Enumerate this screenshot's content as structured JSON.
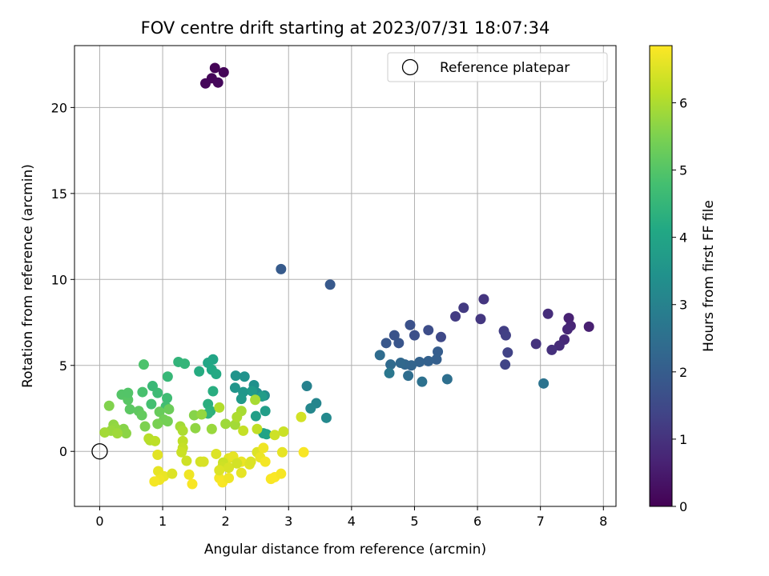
{
  "chart_data": {
    "type": "scatter",
    "title": "FOV centre drift starting at 2023/07/31 18:07:34",
    "xlabel": "Angular distance from reference (arcmin)",
    "ylabel": "Rotation from reference (arcmin)",
    "xlim": [
      -0.4,
      8.2
    ],
    "ylim": [
      -3.2,
      23.6
    ],
    "xticks": [
      0,
      1,
      2,
      3,
      4,
      5,
      6,
      7,
      8
    ],
    "yticks": [
      0,
      5,
      10,
      15,
      20
    ],
    "grid": true,
    "legend": {
      "placement": "top-right",
      "entries": [
        "Reference platepar"
      ]
    },
    "reference_point": {
      "x": 0,
      "y": 0
    },
    "colorbar": {
      "label": "Hours from first FF file",
      "range": [
        0,
        6.85
      ],
      "ticks": [
        0,
        1,
        2,
        3,
        4,
        5,
        6
      ],
      "colormap": "viridis"
    },
    "series": [
      {
        "points": [
          [
            1.83,
            22.3,
            0.05
          ],
          [
            1.97,
            22.05,
            0.08
          ],
          [
            1.78,
            21.7,
            0.1
          ],
          [
            1.68,
            21.4,
            0.12
          ],
          [
            1.88,
            21.45,
            0.14
          ],
          [
            7.77,
            7.25,
            0.6
          ],
          [
            7.45,
            7.75,
            0.65
          ],
          [
            7.48,
            7.3,
            0.7
          ],
          [
            7.43,
            7.1,
            0.75
          ],
          [
            7.38,
            6.5,
            0.8
          ],
          [
            7.3,
            6.15,
            0.85
          ],
          [
            7.12,
            8.0,
            0.9
          ],
          [
            7.18,
            5.9,
            0.95
          ],
          [
            6.93,
            6.25,
            1.0
          ],
          [
            6.1,
            8.85,
            1.05
          ],
          [
            6.05,
            7.7,
            1.1
          ],
          [
            5.78,
            8.35,
            1.15
          ],
          [
            5.65,
            7.85,
            1.2
          ],
          [
            6.42,
            7.0,
            1.25
          ],
          [
            6.45,
            6.75,
            1.3
          ],
          [
            6.48,
            5.75,
            1.35
          ],
          [
            6.44,
            5.05,
            1.4
          ],
          [
            5.42,
            6.65,
            1.5
          ],
          [
            5.22,
            7.05,
            1.6
          ],
          [
            5.0,
            6.75,
            1.65
          ],
          [
            4.93,
            7.35,
            1.7
          ],
          [
            4.68,
            6.75,
            1.75
          ],
          [
            4.75,
            6.3,
            1.8
          ],
          [
            4.55,
            6.3,
            1.85
          ],
          [
            3.66,
            9.7,
            1.9
          ],
          [
            2.88,
            10.6,
            1.95
          ],
          [
            5.37,
            5.8,
            2.0
          ],
          [
            5.35,
            5.35,
            2.05
          ],
          [
            5.22,
            5.25,
            2.1
          ],
          [
            5.08,
            5.2,
            2.15
          ],
          [
            4.95,
            5.0,
            2.2
          ],
          [
            4.85,
            5.05,
            2.25
          ],
          [
            4.78,
            5.15,
            2.3
          ],
          [
            4.62,
            5.05,
            2.35
          ],
          [
            4.45,
            5.6,
            2.4
          ],
          [
            4.9,
            4.4,
            2.45
          ],
          [
            5.52,
            4.2,
            2.5
          ],
          [
            5.12,
            4.05,
            2.55
          ],
          [
            7.05,
            3.95,
            2.6
          ],
          [
            4.6,
            4.55,
            2.7
          ],
          [
            3.29,
            3.8,
            3.0
          ],
          [
            3.44,
            2.8,
            3.1
          ],
          [
            3.35,
            2.5,
            3.15
          ],
          [
            3.6,
            1.95,
            3.2
          ],
          [
            2.62,
            3.25,
            3.3
          ],
          [
            2.5,
            3.4,
            3.35
          ],
          [
            2.45,
            3.85,
            3.4
          ],
          [
            2.3,
            4.35,
            3.45
          ],
          [
            2.16,
            4.4,
            3.5
          ],
          [
            2.15,
            3.7,
            3.55
          ],
          [
            2.28,
            3.45,
            3.6
          ],
          [
            2.25,
            3.05,
            3.65
          ],
          [
            2.42,
            3.5,
            3.7
          ],
          [
            2.58,
            3.2,
            3.75
          ],
          [
            2.63,
            2.35,
            3.8
          ],
          [
            2.48,
            2.05,
            3.85
          ],
          [
            2.6,
            1.05,
            3.9
          ],
          [
            2.65,
            1.0,
            3.95
          ],
          [
            1.8,
            5.35,
            4.0
          ],
          [
            1.72,
            5.15,
            4.05
          ],
          [
            1.78,
            4.75,
            4.1
          ],
          [
            1.85,
            4.5,
            4.15
          ],
          [
            1.58,
            4.65,
            4.2
          ],
          [
            1.8,
            3.5,
            4.25
          ],
          [
            1.72,
            2.75,
            4.3
          ],
          [
            1.76,
            2.35,
            4.35
          ],
          [
            1.72,
            2.2,
            4.4
          ],
          [
            1.25,
            5.2,
            4.45
          ],
          [
            1.35,
            5.1,
            4.5
          ],
          [
            1.08,
            4.35,
            4.55
          ],
          [
            0.84,
            3.8,
            4.6
          ],
          [
            0.92,
            3.4,
            4.65
          ],
          [
            1.07,
            3.1,
            4.7
          ],
          [
            1.05,
            2.6,
            4.75
          ],
          [
            0.82,
            2.75,
            4.8
          ],
          [
            0.68,
            3.45,
            4.85
          ],
          [
            0.7,
            5.05,
            4.9
          ],
          [
            0.44,
            3.35,
            4.95
          ],
          [
            0.35,
            3.3,
            5.0
          ],
          [
            0.45,
            3.0,
            5.05
          ],
          [
            0.48,
            2.45,
            5.1
          ],
          [
            0.62,
            2.35,
            5.15
          ],
          [
            0.67,
            2.1,
            5.2
          ],
          [
            0.95,
            2.3,
            5.25
          ],
          [
            1.1,
            2.45,
            5.3
          ],
          [
            1.02,
            1.85,
            5.35
          ],
          [
            1.08,
            1.75,
            5.4
          ],
          [
            0.92,
            1.6,
            5.45
          ],
          [
            0.72,
            1.45,
            5.5
          ],
          [
            0.15,
            2.65,
            5.55
          ],
          [
            0.38,
            1.3,
            5.6
          ],
          [
            0.42,
            1.05,
            5.65
          ],
          [
            0.22,
            1.55,
            5.7
          ],
          [
            0.25,
            1.35,
            5.75
          ],
          [
            0.18,
            1.2,
            5.8
          ],
          [
            0.28,
            1.05,
            5.85
          ],
          [
            0.08,
            1.1,
            5.9
          ],
          [
            0.45,
            3.4,
            4.98
          ],
          [
            2.47,
            3.0,
            5.95
          ],
          [
            1.5,
            2.1,
            5.6
          ],
          [
            1.52,
            1.35,
            5.7
          ],
          [
            1.62,
            2.15,
            5.75
          ],
          [
            1.78,
            1.3,
            5.8
          ],
          [
            2.0,
            1.6,
            5.85
          ],
          [
            2.15,
            1.55,
            5.9
          ],
          [
            2.25,
            2.35,
            5.95
          ],
          [
            2.18,
            2.0,
            6.0
          ],
          [
            1.9,
            2.55,
            6.05
          ],
          [
            1.28,
            1.45,
            5.9
          ],
          [
            1.32,
            1.2,
            6.0
          ],
          [
            0.8,
            0.65,
            6.05
          ],
          [
            0.78,
            0.75,
            6.1
          ],
          [
            0.88,
            0.6,
            6.15
          ],
          [
            1.32,
            0.6,
            6.2
          ],
          [
            1.32,
            0.2,
            6.25
          ],
          [
            1.3,
            -0.05,
            6.3
          ],
          [
            1.38,
            -0.55,
            6.35
          ],
          [
            1.6,
            -0.6,
            6.4
          ],
          [
            1.65,
            -0.6,
            6.45
          ],
          [
            1.85,
            -0.15,
            6.5
          ],
          [
            2.05,
            -0.4,
            6.55
          ],
          [
            2.12,
            -0.3,
            6.6
          ],
          [
            2.25,
            -0.6,
            6.65
          ],
          [
            0.92,
            -0.2,
            6.55
          ],
          [
            0.93,
            -1.15,
            6.6
          ],
          [
            1.02,
            -1.45,
            6.65
          ],
          [
            0.95,
            -1.65,
            6.7
          ],
          [
            0.87,
            -1.75,
            6.75
          ],
          [
            1.15,
            -1.3,
            6.5
          ],
          [
            1.42,
            -1.35,
            6.7
          ],
          [
            1.47,
            -1.9,
            6.8
          ],
          [
            1.9,
            -1.55,
            6.75
          ],
          [
            1.95,
            -1.8,
            6.8
          ],
          [
            2.05,
            -1.55,
            6.7
          ],
          [
            2.25,
            -1.25,
            6.6
          ],
          [
            2.38,
            -0.75,
            6.55
          ],
          [
            2.5,
            -0.05,
            6.5
          ],
          [
            2.55,
            -0.35,
            6.65
          ],
          [
            2.6,
            0.2,
            6.7
          ],
          [
            2.63,
            -0.6,
            6.75
          ],
          [
            2.72,
            -1.6,
            6.8
          ],
          [
            2.78,
            -1.5,
            6.82
          ],
          [
            2.88,
            -1.3,
            6.78
          ],
          [
            2.9,
            -0.05,
            6.6
          ],
          [
            3.24,
            -0.05,
            6.8
          ],
          [
            2.92,
            1.15,
            6.3
          ],
          [
            2.78,
            0.95,
            6.35
          ],
          [
            3.2,
            2.0,
            6.4
          ],
          [
            2.5,
            1.3,
            6.2
          ],
          [
            2.28,
            1.2,
            6.25
          ],
          [
            1.96,
            -0.65,
            6.3
          ],
          [
            1.95,
            -0.9,
            6.35
          ],
          [
            2.05,
            -0.95,
            6.45
          ],
          [
            1.9,
            -1.1,
            6.5
          ],
          [
            2.18,
            -0.7,
            6.4
          ],
          [
            2.4,
            -0.6,
            6.5
          ]
        ]
      }
    ]
  }
}
